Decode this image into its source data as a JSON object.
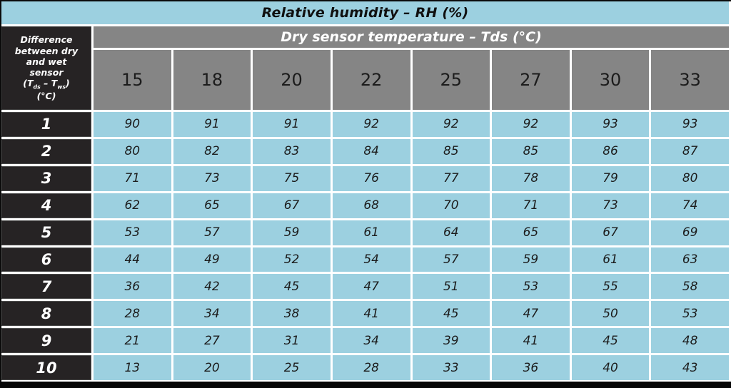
{
  "table": {
    "title": "Relative humidity – RH (%)",
    "col_group_title": "Dry sensor temperature – Tds (°C)",
    "corner": {
      "line1": "Difference",
      "line2": "between dry",
      "line3": "and wet",
      "line4": "sensor",
      "formula": {
        "open": "(T",
        "sub1": "ds",
        "mid": " – T",
        "sub2": "ws",
        "close": ")"
      },
      "unit": "(°C)"
    },
    "column_headers": [
      "15",
      "18",
      "20",
      "22",
      "25",
      "27",
      "30",
      "33"
    ],
    "rows": [
      {
        "diff": "1",
        "values": [
          "90",
          "91",
          "91",
          "92",
          "92",
          "92",
          "93",
          "93"
        ]
      },
      {
        "diff": "2",
        "values": [
          "80",
          "82",
          "83",
          "84",
          "85",
          "85",
          "86",
          "87"
        ]
      },
      {
        "diff": "3",
        "values": [
          "71",
          "73",
          "75",
          "76",
          "77",
          "78",
          "79",
          "80"
        ]
      },
      {
        "diff": "4",
        "values": [
          "62",
          "65",
          "67",
          "68",
          "70",
          "71",
          "73",
          "74"
        ]
      },
      {
        "diff": "5",
        "values": [
          "53",
          "57",
          "59",
          "61",
          "64",
          "65",
          "67",
          "69"
        ]
      },
      {
        "diff": "6",
        "values": [
          "44",
          "49",
          "52",
          "54",
          "57",
          "59",
          "61",
          "63"
        ]
      },
      {
        "diff": "7",
        "values": [
          "36",
          "42",
          "45",
          "47",
          "51",
          "53",
          "55",
          "58"
        ]
      },
      {
        "diff": "8",
        "values": [
          "28",
          "34",
          "38",
          "41",
          "45",
          "47",
          "50",
          "53"
        ]
      },
      {
        "diff": "9",
        "values": [
          "21",
          "27",
          "31",
          "34",
          "39",
          "41",
          "45",
          "48"
        ]
      },
      {
        "diff": "10",
        "values": [
          "13",
          "20",
          "25",
          "28",
          "33",
          "36",
          "40",
          "43"
        ]
      }
    ]
  },
  "chart_data": {
    "type": "table",
    "title": "Relative humidity – RH (%)",
    "row_axis_label": "Difference between dry and wet sensor (Tds – Tws) (°C)",
    "col_axis_label": "Dry sensor temperature – Tds (°C)",
    "columns": [
      15,
      18,
      20,
      22,
      25,
      27,
      30,
      33
    ],
    "row_keys": [
      1,
      2,
      3,
      4,
      5,
      6,
      7,
      8,
      9,
      10
    ],
    "values": [
      [
        90,
        91,
        91,
        92,
        92,
        92,
        93,
        93
      ],
      [
        80,
        82,
        83,
        84,
        85,
        85,
        86,
        87
      ],
      [
        71,
        73,
        75,
        76,
        77,
        78,
        79,
        80
      ],
      [
        62,
        65,
        67,
        68,
        70,
        71,
        73,
        74
      ],
      [
        53,
        57,
        59,
        61,
        64,
        65,
        67,
        69
      ],
      [
        44,
        49,
        52,
        54,
        57,
        59,
        61,
        63
      ],
      [
        36,
        42,
        45,
        47,
        51,
        53,
        55,
        58
      ],
      [
        28,
        34,
        38,
        41,
        45,
        47,
        50,
        53
      ],
      [
        21,
        27,
        31,
        34,
        39,
        41,
        45,
        48
      ],
      [
        13,
        20,
        25,
        28,
        33,
        36,
        40,
        43
      ]
    ]
  },
  "colors": {
    "light_blue": "#9cd0e0",
    "gray": "#858585",
    "dark": "#262324",
    "separator": "#ffffff",
    "outer_border": "#0b0b0b",
    "data_text": "#1c1c1c",
    "header_text": "#ffffff"
  }
}
